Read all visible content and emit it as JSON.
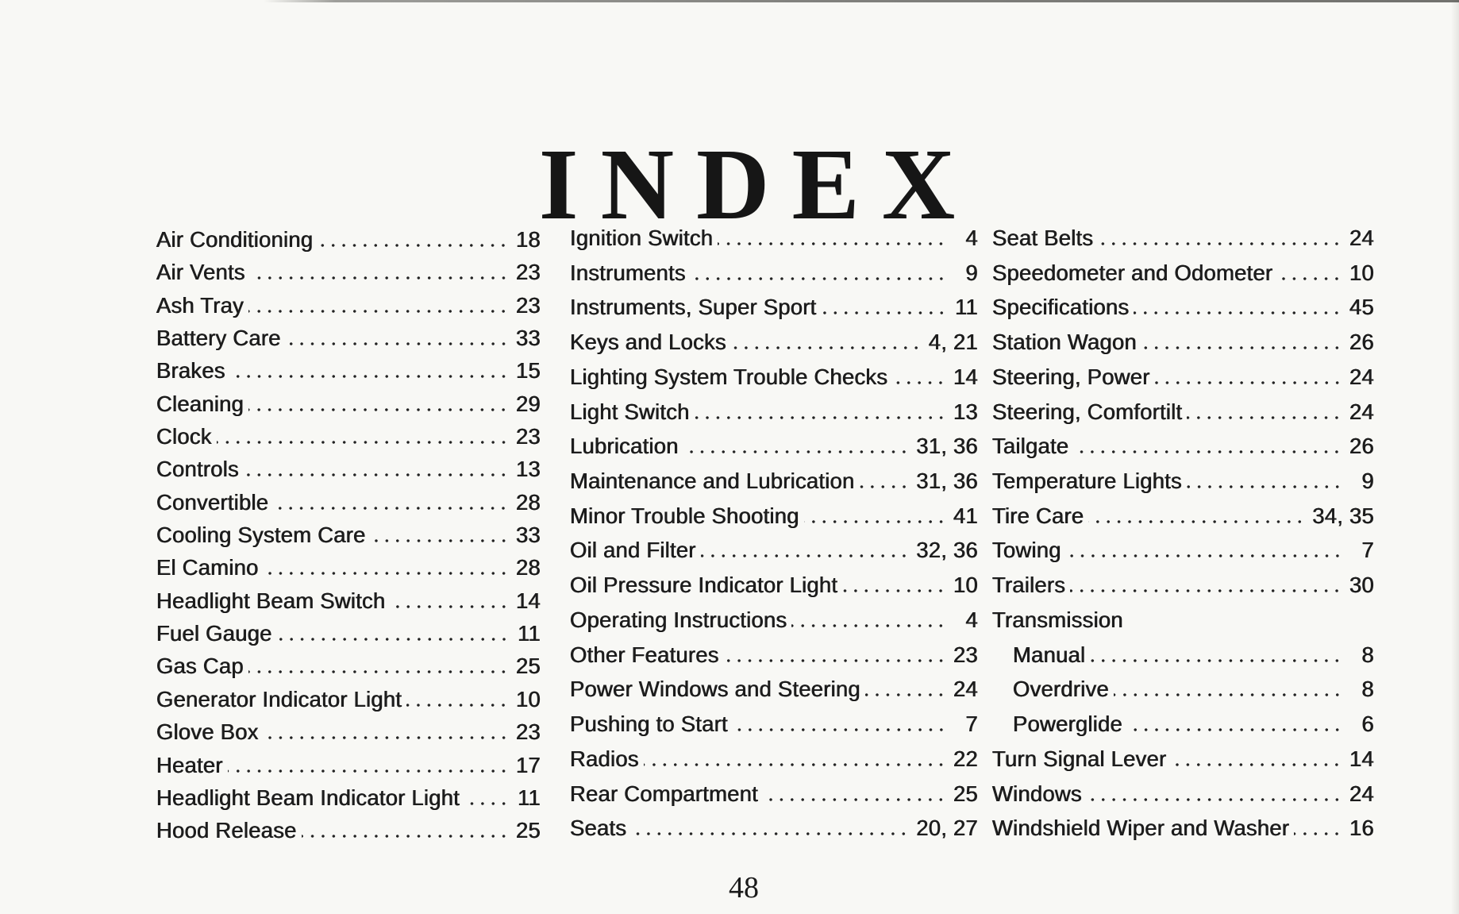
{
  "page": {
    "title": "INDEX",
    "page_number": "48"
  },
  "index": {
    "columns": [
      {
        "entries": [
          {
            "label": "Air Conditioning",
            "page": "18"
          },
          {
            "label": "Air Vents",
            "page": "23"
          },
          {
            "label": "Ash Tray",
            "page": "23"
          },
          {
            "label": "Battery Care",
            "page": "33"
          },
          {
            "label": "Brakes",
            "page": "15"
          },
          {
            "label": "Cleaning",
            "page": "29"
          },
          {
            "label": "Clock",
            "page": "23"
          },
          {
            "label": "Controls",
            "page": "13"
          },
          {
            "label": "Convertible",
            "page": "28"
          },
          {
            "label": "Cooling System Care",
            "page": "33"
          },
          {
            "label": "El Camino",
            "page": "28"
          },
          {
            "label": "Headlight Beam Switch",
            "page": "14"
          },
          {
            "label": "Fuel Gauge",
            "page": "11"
          },
          {
            "label": "Gas Cap",
            "page": "25"
          },
          {
            "label": "Generator Indicator Light",
            "page": "10"
          },
          {
            "label": "Glove Box",
            "page": "23"
          },
          {
            "label": "Heater",
            "page": "17"
          },
          {
            "label": "Headlight Beam Indicator Light",
            "page": "11"
          },
          {
            "label": "Hood Release",
            "page": "25"
          }
        ]
      },
      {
        "entries": [
          {
            "label": "Ignition Switch",
            "page": "4"
          },
          {
            "label": "Instruments",
            "page": "9"
          },
          {
            "label": "Instruments, Super Sport",
            "page": "11"
          },
          {
            "label": "Keys and Locks",
            "page": "4, 21"
          },
          {
            "label": "Lighting System Trouble Checks",
            "page": "14"
          },
          {
            "label": "Light Switch",
            "page": "13"
          },
          {
            "label": "Lubrication",
            "page": "31, 36"
          },
          {
            "label": "Maintenance and Lubrication",
            "page": "31, 36"
          },
          {
            "label": "Minor Trouble Shooting",
            "page": "41"
          },
          {
            "label": "Oil and Filter",
            "page": "32, 36"
          },
          {
            "label": "Oil Pressure Indicator Light",
            "page": "10"
          },
          {
            "label": "Operating Instructions",
            "page": "4"
          },
          {
            "label": "Other Features",
            "page": "23"
          },
          {
            "label": "Power Windows and Steering",
            "page": "24"
          },
          {
            "label": "Pushing to Start",
            "page": "7"
          },
          {
            "label": "Radios",
            "page": "22"
          },
          {
            "label": "Rear Compartment",
            "page": "25"
          },
          {
            "label": "Seats",
            "page": "20, 27"
          }
        ]
      },
      {
        "entries": [
          {
            "label": "Seat Belts",
            "page": "24"
          },
          {
            "label": "Speedometer and Odometer",
            "page": "10"
          },
          {
            "label": "Specifications",
            "page": "45"
          },
          {
            "label": "Station Wagon",
            "page": "26"
          },
          {
            "label": "Steering, Power",
            "page": "24"
          },
          {
            "label": "Steering, Comfortilt",
            "page": "24"
          },
          {
            "label": "Tailgate",
            "page": "26"
          },
          {
            "label": "Temperature Lights",
            "page": "9"
          },
          {
            "label": "Tire Care",
            "page": "34, 35"
          },
          {
            "label": "Towing",
            "page": "7"
          },
          {
            "label": "Trailers",
            "page": "30"
          },
          {
            "label": "Transmission",
            "page": "",
            "no_leader": true
          },
          {
            "label": "Manual",
            "page": "8",
            "indent": true
          },
          {
            "label": "Overdrive",
            "page": "8",
            "indent": true
          },
          {
            "label": "Powerglide",
            "page": "6",
            "indent": true
          },
          {
            "label": "Turn Signal Lever",
            "page": "14"
          },
          {
            "label": "Windows",
            "page": "24"
          },
          {
            "label": "Windshield Wiper and Washer",
            "page": "16"
          }
        ]
      }
    ]
  }
}
